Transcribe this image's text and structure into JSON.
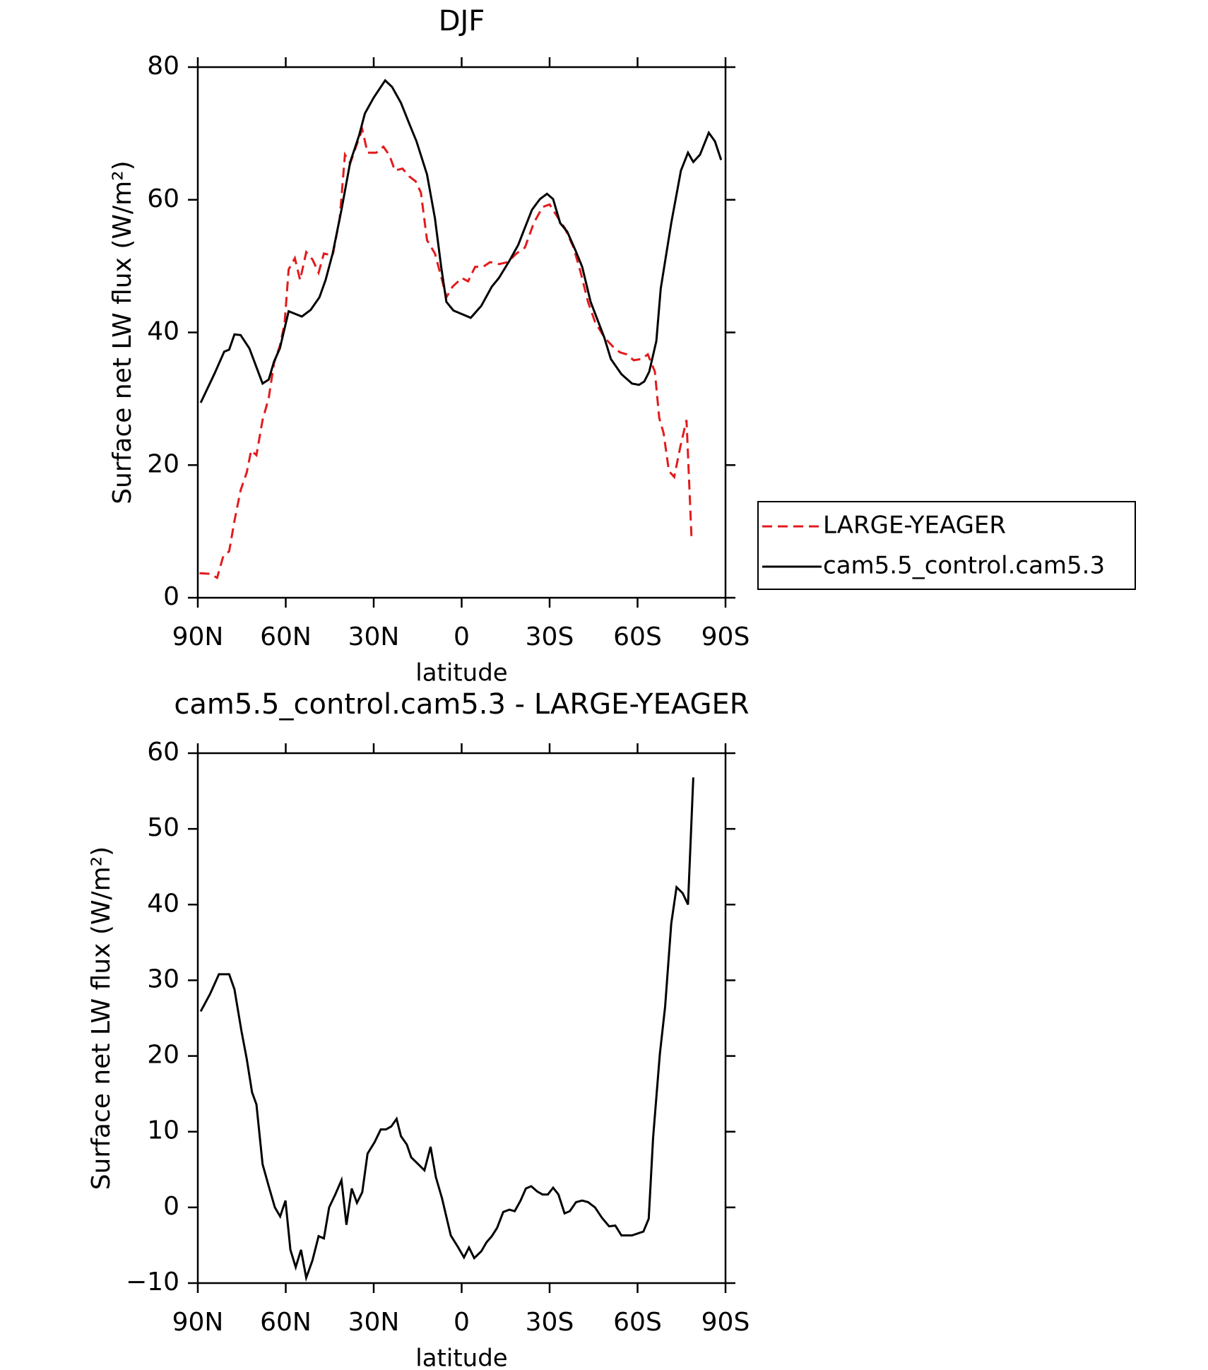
{
  "chart_data": [
    {
      "type": "line",
      "title": "DJF",
      "xlabel": "latitude",
      "ylabel": "Surface net LW flux (W/m²)",
      "xlim": [
        90,
        -90
      ],
      "xticks": [
        {
          "value": 90,
          "label": "90N"
        },
        {
          "value": 60,
          "label": "60N"
        },
        {
          "value": 30,
          "label": "30N"
        },
        0,
        {
          "value": -30,
          "label": "30S"
        },
        {
          "value": -60,
          "label": "60S"
        },
        {
          "value": -90,
          "label": "90S"
        }
      ],
      "ylim": [
        0,
        80
      ],
      "yticks": [
        0,
        20,
        40,
        60,
        80
      ],
      "legend": "right",
      "series": [
        {
          "name": "LARGE-YEAGER",
          "color": "#e31a1c",
          "dashed": true,
          "x": [
            89.4,
            85.8,
            83.4,
            81.3,
            79.3,
            77.5,
            75.4,
            73.3,
            71.8,
            70,
            67.9,
            65.8,
            64,
            62,
            60.4,
            59,
            56.9,
            55.1,
            53,
            50.9,
            48.8,
            47,
            44,
            41.6,
            39.8,
            38,
            36.3,
            33.9,
            32.1,
            29.1,
            26.7,
            24.6,
            22.8,
            20.2,
            17.8,
            15.7,
            13.9,
            11.8,
            9.1,
            6.7,
            5.2,
            3.1,
            -0.1,
            -2.2,
            -4.6,
            -7.3,
            -9.7,
            -12.7,
            -15.7,
            -18.7,
            -21.6,
            -24.6,
            -27.6,
            -30,
            -32.7,
            -35.1,
            -38.1,
            -40.5,
            -43.1,
            -45.5,
            -48.6,
            -51.5,
            -54,
            -56.3,
            -58.7,
            -61.4,
            -63.5,
            -65.9,
            -67.4,
            -68.9,
            -70.7,
            -72.5,
            -74.6,
            -76.7,
            -78.4
          ],
          "values": [
            3.7,
            3.6,
            3.0,
            6.3,
            7.0,
            11.6,
            16.2,
            18.9,
            22.2,
            21.5,
            26.8,
            30.1,
            35.4,
            38.0,
            41.3,
            49.5,
            51.2,
            47.9,
            52.1,
            51.0,
            49.0,
            51.9,
            51.6,
            57.2,
            66.8,
            65.5,
            67.7,
            70.6,
            67.1,
            67.1,
            68.0,
            66.7,
            64.4,
            64.7,
            63.5,
            62.8,
            61.1,
            53.9,
            51.9,
            47.9,
            45.3,
            46.9,
            48.2,
            47.7,
            49.9,
            49.9,
            50.6,
            50.3,
            50.6,
            51.9,
            52.8,
            56.5,
            58.9,
            59.3,
            57.4,
            55.8,
            52.9,
            49.2,
            44.6,
            41.6,
            39.3,
            37.9,
            37.0,
            36.7,
            35.8,
            36.0,
            36.7,
            34.1,
            27.1,
            24.8,
            19.1,
            18.2,
            22.8,
            26.8,
            9.0
          ]
        },
        {
          "name": "cam5.5_control.cam5.3",
          "color": "#000000",
          "dashed": false,
          "x": [
            89,
            84.3,
            81,
            79.3,
            77.5,
            75.4,
            72.4,
            67.9,
            65.8,
            64,
            62,
            59,
            54.5,
            51.5,
            48.5,
            46.4,
            44,
            41,
            38,
            35,
            33,
            30,
            26.1,
            23.7,
            20.7,
            17.8,
            15.4,
            11.8,
            9.1,
            7,
            5.2,
            2.8,
            -3.1,
            -6.7,
            -10.3,
            -12.7,
            -16.3,
            -19.3,
            -21.6,
            -24,
            -26.7,
            -29.1,
            -31.2,
            -33.6,
            -36,
            -38.7,
            -41.1,
            -44,
            -48.6,
            -50.9,
            -54.5,
            -58.1,
            -60.5,
            -62.3,
            -64,
            -66.4,
            -67.9,
            -71.5,
            -74.8,
            -77.2,
            -79,
            -81.3,
            -84.3,
            -86.4,
            -88.5
          ],
          "values": [
            29.4,
            33.8,
            37.1,
            37.4,
            39.7,
            39.6,
            37.6,
            32.3,
            32.9,
            35.6,
            37.6,
            43.2,
            42.4,
            43.4,
            45.3,
            47.9,
            51.9,
            58.5,
            65.7,
            69.7,
            73.0,
            75.4,
            78.0,
            77.0,
            74.6,
            71.4,
            68.8,
            63.8,
            57.2,
            49.9,
            44.6,
            43.3,
            42.2,
            44.0,
            46.9,
            48.2,
            50.8,
            53.2,
            55.8,
            58.5,
            60.1,
            60.9,
            60.1,
            56.5,
            55.2,
            52.5,
            49.9,
            44.6,
            39.3,
            36.0,
            33.7,
            32.3,
            32.1,
            32.6,
            34.1,
            38.7,
            46.6,
            56.5,
            64.4,
            67.1,
            65.7,
            66.8,
            70.1,
            68.8,
            66.0
          ]
        }
      ]
    },
    {
      "type": "line",
      "title": "cam5.5_control.cam5.3 - LARGE-YEAGER",
      "xlabel": "latitude",
      "ylabel": "Surface net LW flux (W/m²)",
      "xlim": [
        90,
        -90
      ],
      "xticks": [
        {
          "value": 90,
          "label": "90N"
        },
        {
          "value": 60,
          "label": "60N"
        },
        {
          "value": 30,
          "label": "30N"
        },
        0,
        {
          "value": -30,
          "label": "30S"
        },
        {
          "value": -60,
          "label": "60S"
        },
        {
          "value": -90,
          "label": "90S"
        }
      ],
      "ylim": [
        -10,
        60
      ],
      "yticks": [
        {
          "value": -10,
          "label": "−10"
        },
        0,
        10,
        20,
        30,
        40,
        50,
        60
      ],
      "series": [
        {
          "color": "#000000",
          "dashed": false,
          "x": [
            89,
            85.8,
            82.8,
            79.3,
            77.5,
            75.1,
            73.3,
            71.5,
            70,
            67.9,
            65.8,
            63.7,
            61.9,
            60.1,
            58.4,
            56.6,
            54.8,
            53,
            50.9,
            48.8,
            47,
            45.2,
            43.1,
            41,
            39.3,
            37.5,
            35.7,
            33.9,
            32.1,
            29.7,
            27.6,
            25.8,
            24.0,
            22.2,
            20.7,
            18.7,
            17.2,
            14.8,
            12.7,
            10.6,
            8.8,
            6.7,
            3.7,
            1.3,
            -0.8,
            -2.5,
            -4.3,
            -6.7,
            -8.5,
            -10.3,
            -12.1,
            -14.2,
            -16.3,
            -18.1,
            -20.1,
            -21.9,
            -23.7,
            -25.8,
            -27.6,
            -29.4,
            -31.2,
            -33,
            -35.1,
            -36.9,
            -39,
            -41.1,
            -43.1,
            -45.5,
            -47.9,
            -50.3,
            -52.4,
            -54.5,
            -58.1,
            -62,
            -63.8,
            -65.3,
            -67.6,
            -69.4,
            -71.5,
            -73.3,
            -75.4,
            -77.2,
            -79
          ],
          "values": [
            25.9,
            28.2,
            30.8,
            30.8,
            28.8,
            23.3,
            19.6,
            15.2,
            13.6,
            5.7,
            2.8,
            0,
            -1.2,
            0.9,
            -5.6,
            -7.9,
            -5.6,
            -9.3,
            -7.0,
            -3.8,
            -4.1,
            0,
            1.7,
            3.6,
            -2.3,
            2.5,
            0.6,
            2.0,
            7.1,
            8.6,
            10.3,
            10.3,
            10.7,
            11.7,
            9.4,
            8.3,
            6.6,
            5.7,
            4.9,
            8.0,
            4.0,
            1.2,
            -3.7,
            -5.2,
            -6.6,
            -5.3,
            -6.7,
            -5.8,
            -4.6,
            -3.8,
            -2.7,
            -0.6,
            -0.3,
            -0.5,
            0.9,
            2.5,
            2.8,
            2.1,
            1.7,
            1.7,
            2.6,
            1.7,
            -0.8,
            -0.5,
            0.7,
            0.9,
            0.7,
            0,
            -1.4,
            -2.5,
            -2.4,
            -3.7,
            -3.7,
            -3.2,
            -1.5,
            9.2,
            20.2,
            26.5,
            37.5,
            42.3,
            41.5,
            40.0,
            56.8
          ]
        }
      ]
    }
  ]
}
